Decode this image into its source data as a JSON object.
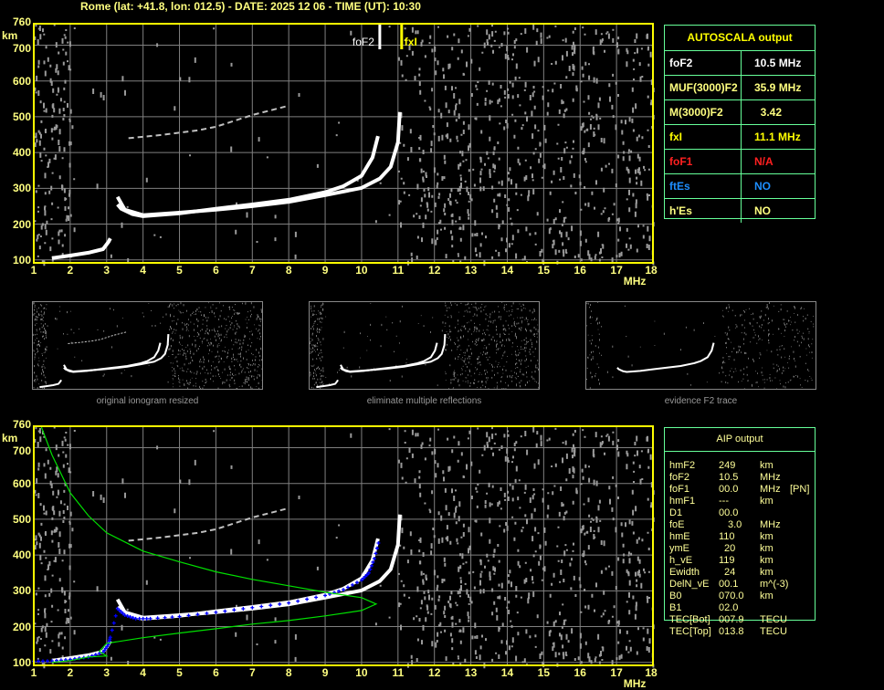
{
  "header": {
    "title": "Rome (lat: +41.8, lon: 012.5) - DATE: 2025 12 06 - TIME (UT): 10:30"
  },
  "autoscala": {
    "title": "AUTOSCALA output",
    "rows": [
      {
        "label": "foF2",
        "value": "10.5 MHz",
        "label_color": "#ffffff",
        "value_color": "#ffffff"
      },
      {
        "label": "MUF(3000)F2",
        "value": "35.9 MHz",
        "label_color": "#ffff80",
        "value_color": "#ffff80"
      },
      {
        "label": "M(3000)F2",
        "value": "  3.42",
        "label_color": "#ffff80",
        "value_color": "#ffff80"
      },
      {
        "label": "fxI",
        "value": "11.1 MHz",
        "label_color": "#ffff00",
        "value_color": "#ffff00"
      },
      {
        "label": "foF1",
        "value": "N/A",
        "label_color": "#ff2020",
        "value_color": "#ff2020"
      },
      {
        "label": "ftEs",
        "value": "NO",
        "label_color": "#1e8fff",
        "value_color": "#1e8fff"
      },
      {
        "label": "h'Es",
        "value": "NO",
        "label_color": "#ffff80",
        "value_color": "#ffff80"
      }
    ]
  },
  "aip": {
    "title": "AIP output",
    "rows": [
      {
        "param": "hmF2",
        "value": "249",
        "unit": "km",
        "flag": ""
      },
      {
        "param": "foF2",
        "value": "10.5",
        "unit": "MHz",
        "flag": ""
      },
      {
        "param": "foF1",
        "value": "00.0",
        "unit": "MHz",
        "flag": "[PN]"
      },
      {
        "param": "hmF1",
        "value": "---",
        "unit": "km",
        "flag": ""
      },
      {
        "param": "D1",
        "value": "00.0",
        "unit": "",
        "flag": ""
      },
      {
        "param": "foE",
        "value": "3.0",
        "unit": "MHz",
        "flag": ""
      },
      {
        "param": "hmE",
        "value": "110",
        "unit": "km",
        "flag": ""
      },
      {
        "param": "ymE",
        "value": "20",
        "unit": "km",
        "flag": ""
      },
      {
        "param": "h_vE",
        "value": "119",
        "unit": "km",
        "flag": ""
      },
      {
        "param": "Ewidth",
        "value": "24",
        "unit": "km",
        "flag": ""
      },
      {
        "param": "DelN_vE",
        "value": "00.1",
        "unit": "m^(-3)",
        "flag": ""
      },
      {
        "param": "B0",
        "value": "070.0",
        "unit": "km",
        "flag": ""
      },
      {
        "param": "B1",
        "value": "02.0",
        "unit": "",
        "flag": ""
      },
      {
        "param": "TEC[Bot]",
        "value": "007.9",
        "unit": "TECU",
        "flag": ""
      },
      {
        "param": "TEC[Top]",
        "value": "013.8",
        "unit": "TECU",
        "flag": ""
      }
    ]
  },
  "thumbnails": [
    {
      "caption": "original ionogram resized"
    },
    {
      "caption": "eliminate multiple reflections"
    },
    {
      "caption": "evidence F2 trace"
    }
  ],
  "colors": {
    "axis": "#ffff00",
    "grid": "#808080",
    "labels": "#ffff80",
    "trace": "#ffffff",
    "noise": "#9a9a9a",
    "fit": "#0000ff",
    "profile": "#00e000"
  },
  "chart_data": [
    {
      "type": "line",
      "xlabel": "MHz",
      "ylabel": "km",
      "xlim": [
        1,
        18
      ],
      "ylim": [
        90,
        760
      ],
      "x_ticks": [
        1,
        2,
        3,
        4,
        5,
        6,
        7,
        8,
        9,
        10,
        11,
        12,
        13,
        14,
        15,
        16,
        17,
        18
      ],
      "y_ticks": [
        760,
        700,
        600,
        500,
        400,
        300,
        200,
        100
      ],
      "grid": true,
      "markers": [
        {
          "label": "foF2",
          "x": 10.5,
          "color": "#ffffff"
        },
        {
          "label": "fxI",
          "x": 11.1,
          "color": "#ffff00"
        }
      ],
      "series": [
        {
          "color": "#ffffff",
          "points": [
            [
              1.5,
              105
            ],
            [
              2,
              112
            ],
            [
              2.5,
              120
            ],
            [
              2.9,
              130
            ],
            [
              3.05,
              150
            ],
            [
              3.1,
              160
            ]
          ]
        },
        {
          "color": "#ffffff",
          "points": [
            [
              3.3,
              255
            ],
            [
              3.4,
              243
            ],
            [
              3.7,
              228
            ],
            [
              4,
              222
            ],
            [
              5,
              230
            ],
            [
              6,
              243
            ],
            [
              7,
              255
            ],
            [
              8,
              268
            ],
            [
              9,
              289
            ],
            [
              9.5,
              306
            ],
            [
              10,
              335
            ],
            [
              10.3,
              386
            ],
            [
              10.45,
              446
            ]
          ]
        },
        {
          "color": "#ffffff",
          "points": [
            [
              3.3,
              276
            ],
            [
              3.5,
              240
            ],
            [
              4,
              225
            ],
            [
              5,
              232
            ],
            [
              6,
              240
            ],
            [
              7,
              250
            ],
            [
              8,
              262
            ],
            [
              9,
              281
            ],
            [
              10,
              301
            ],
            [
              10.5,
              327
            ],
            [
              10.8,
              360
            ],
            [
              11,
              429
            ],
            [
              11.05,
              513
            ]
          ]
        },
        {
          "color": "#c0c0c0",
          "points": [
            [
              3.6,
              440
            ],
            [
              4.5,
              449
            ],
            [
              5.5,
              462
            ],
            [
              6,
              472
            ],
            [
              7,
              505
            ],
            [
              8,
              531
            ]
          ]
        }
      ]
    },
    {
      "type": "line",
      "xlabel": "MHz",
      "ylabel": "km",
      "xlim": [
        1,
        18
      ],
      "ylim": [
        90,
        760
      ],
      "x_ticks": [
        1,
        2,
        3,
        4,
        5,
        6,
        7,
        8,
        9,
        10,
        11,
        12,
        13,
        14,
        15,
        16,
        17,
        18
      ],
      "y_ticks": [
        760,
        700,
        600,
        500,
        400,
        300,
        200,
        100
      ],
      "grid": true,
      "series": [
        {
          "color": "#ffffff",
          "points": [
            [
              1.5,
              105
            ],
            [
              2,
              112
            ],
            [
              2.5,
              120
            ],
            [
              2.9,
              130
            ],
            [
              3.05,
              150
            ],
            [
              3.1,
              160
            ]
          ]
        },
        {
          "color": "#ffffff",
          "points": [
            [
              3.3,
              255
            ],
            [
              3.4,
              243
            ],
            [
              3.7,
              228
            ],
            [
              4,
              222
            ],
            [
              5,
              230
            ],
            [
              6,
              243
            ],
            [
              7,
              255
            ],
            [
              8,
              268
            ],
            [
              9,
              289
            ],
            [
              9.5,
              306
            ],
            [
              10,
              335
            ],
            [
              10.3,
              386
            ],
            [
              10.45,
              446
            ]
          ]
        },
        {
          "color": "#ffffff",
          "points": [
            [
              3.3,
              276
            ],
            [
              3.5,
              240
            ],
            [
              4,
              225
            ],
            [
              5,
              232
            ],
            [
              6,
              240
            ],
            [
              7,
              250
            ],
            [
              8,
              262
            ],
            [
              9,
              281
            ],
            [
              10,
              301
            ],
            [
              10.5,
              327
            ],
            [
              10.8,
              360
            ],
            [
              11,
              429
            ],
            [
              11.05,
              513
            ]
          ]
        },
        {
          "color": "#c0c0c0",
          "points": [
            [
              3.6,
              440
            ],
            [
              4.5,
              449
            ],
            [
              5.5,
              462
            ],
            [
              6,
              472
            ],
            [
              7,
              505
            ],
            [
              8,
              531
            ]
          ]
        },
        {
          "color": "#0000ff",
          "style": "plus",
          "points": [
            [
              1,
              103
            ],
            [
              1.5,
              104
            ],
            [
              2,
              108
            ],
            [
              2.5,
              115
            ],
            [
              2.9,
              128
            ],
            [
              3.05,
              150
            ],
            [
              3.1,
              170
            ],
            [
              3.3,
              250
            ],
            [
              3.5,
              232
            ],
            [
              3.8,
              222
            ],
            [
              4.2,
              222
            ],
            [
              5,
              228
            ],
            [
              6,
              240
            ],
            [
              7,
              253
            ],
            [
              8,
              266
            ],
            [
              9,
              287
            ],
            [
              9.5,
              303
            ],
            [
              10,
              330
            ],
            [
              10.2,
              350
            ],
            [
              10.35,
              390
            ],
            [
              10.5,
              448
            ]
          ]
        },
        {
          "color": "#00e000",
          "style": "profile",
          "points": [
            [
              1.2,
              760
            ],
            [
              1.5,
              680
            ],
            [
              2,
              574
            ],
            [
              2.5,
              510
            ],
            [
              3,
              462
            ],
            [
              4,
              411
            ],
            [
              5,
              381
            ],
            [
              6,
              353
            ],
            [
              7,
              332
            ],
            [
              8,
              314
            ],
            [
              9,
              296
            ],
            [
              10,
              281
            ],
            [
              10.4,
              263
            ],
            [
              10,
              245
            ],
            [
              9,
              230
            ],
            [
              8,
              217
            ],
            [
              7,
              207
            ],
            [
              6,
              194
            ],
            [
              5,
              182
            ],
            [
              4,
              169
            ],
            [
              3,
              153
            ],
            [
              2.8,
              131
            ],
            [
              3,
              118
            ],
            [
              2.5,
              115
            ],
            [
              2,
              105
            ],
            [
              1.5,
              100
            ]
          ]
        }
      ]
    }
  ]
}
